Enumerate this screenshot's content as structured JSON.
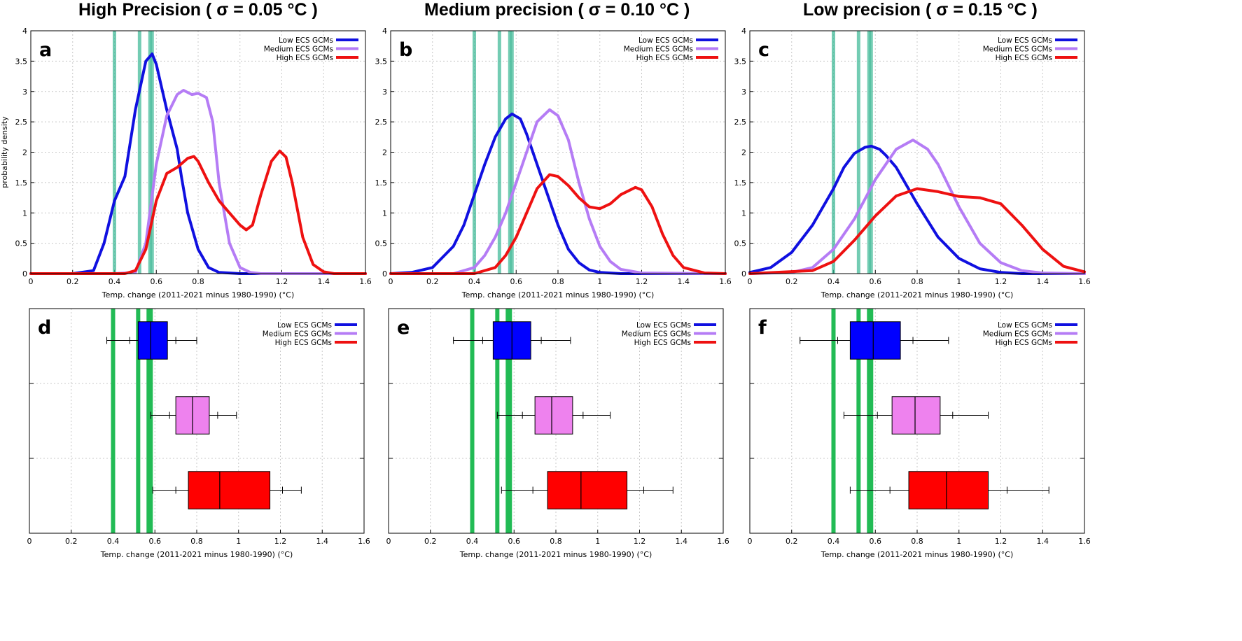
{
  "column_titles": [
    "High Precision  ( σ = 0.05 °C )",
    "Medium precision  ( σ = 0.10 °C )",
    "Low precision ( σ = 0.15 °C )"
  ],
  "colors": {
    "low": "#1010e0",
    "medium": "#b57cf5",
    "high": "#ee1111",
    "box_low": "#0000ff",
    "box_medium": "#ee82ee",
    "box_high": "#ff0000",
    "obs_density": "#44bb99",
    "obs_box": "#22bb55"
  },
  "legend": [
    "Low ECS GCMs",
    "Medium ECS GCMs",
    "High ECS GCMs"
  ],
  "chart_data": [
    {
      "type": "line",
      "panel": "a",
      "xlabel": "Temp. change (2011-2021 minus 1980-1990) (°C)",
      "ylabel": "probability density",
      "xlim": [
        0,
        1.6
      ],
      "ylim": [
        0,
        4
      ],
      "xticks": [
        "0",
        "0.2",
        "0.4",
        "0.6",
        "0.8",
        "1",
        "1.2",
        "1.4",
        "1.6"
      ],
      "yticks": [
        "0",
        "0.5",
        "1",
        "1.5",
        "2",
        "2.5",
        "3",
        "3.5",
        "4"
      ],
      "obs_lines": [
        0.4,
        0.52,
        0.57,
        0.58
      ],
      "series": [
        {
          "name": "Low ECS GCMs",
          "x": [
            0,
            0.2,
            0.3,
            0.35,
            0.4,
            0.45,
            0.5,
            0.55,
            0.58,
            0.6,
            0.65,
            0.7,
            0.72,
            0.75,
            0.8,
            0.85,
            0.9,
            1.0,
            1.6
          ],
          "y": [
            0,
            0,
            0.05,
            0.5,
            1.2,
            1.6,
            2.7,
            3.5,
            3.62,
            3.45,
            2.7,
            2.05,
            1.6,
            1.0,
            0.4,
            0.1,
            0.02,
            0,
            0
          ]
        },
        {
          "name": "Medium ECS GCMs",
          "x": [
            0,
            0.4,
            0.5,
            0.55,
            0.6,
            0.65,
            0.7,
            0.73,
            0.77,
            0.8,
            0.84,
            0.87,
            0.9,
            0.95,
            1.0,
            1.05,
            1.1,
            1.6
          ],
          "y": [
            0,
            0,
            0.02,
            0.5,
            1.8,
            2.6,
            2.95,
            3.02,
            2.95,
            2.97,
            2.9,
            2.5,
            1.5,
            0.5,
            0.1,
            0.02,
            0,
            0
          ]
        },
        {
          "name": "High ECS GCMs",
          "x": [
            0,
            0.45,
            0.5,
            0.55,
            0.6,
            0.65,
            0.7,
            0.75,
            0.78,
            0.8,
            0.85,
            0.9,
            0.95,
            1.0,
            1.03,
            1.06,
            1.1,
            1.15,
            1.19,
            1.22,
            1.25,
            1.3,
            1.35,
            1.4,
            1.45,
            1.6
          ],
          "y": [
            0,
            0,
            0.05,
            0.4,
            1.2,
            1.65,
            1.75,
            1.9,
            1.93,
            1.85,
            1.5,
            1.2,
            1.0,
            0.8,
            0.72,
            0.8,
            1.3,
            1.85,
            2.02,
            1.92,
            1.5,
            0.6,
            0.15,
            0.03,
            0,
            0
          ]
        }
      ]
    },
    {
      "type": "line",
      "panel": "b",
      "xlabel": "Temp. change (2011-2021 minus 1980-1990) (°C)",
      "ylabel": "",
      "xlim": [
        0,
        1.6
      ],
      "ylim": [
        0,
        4
      ],
      "xticks": [
        "0",
        "0.2",
        "0.4",
        "0.6",
        "0.8",
        "1",
        "1.2",
        "1.4",
        "1.6"
      ],
      "yticks": [
        "0",
        "0.5",
        "1",
        "1.5",
        "2",
        "2.5",
        "3",
        "3.5",
        "4"
      ],
      "obs_lines": [
        0.4,
        0.52,
        0.57,
        0.58
      ],
      "series": [
        {
          "name": "Low ECS GCMs",
          "x": [
            0,
            0.1,
            0.2,
            0.3,
            0.35,
            0.4,
            0.45,
            0.5,
            0.55,
            0.58,
            0.62,
            0.65,
            0.7,
            0.75,
            0.8,
            0.85,
            0.9,
            0.95,
            1.0,
            1.1,
            1.6
          ],
          "y": [
            0,
            0.02,
            0.1,
            0.45,
            0.8,
            1.3,
            1.8,
            2.25,
            2.55,
            2.63,
            2.55,
            2.3,
            1.8,
            1.3,
            0.8,
            0.4,
            0.18,
            0.06,
            0.02,
            0,
            0
          ]
        },
        {
          "name": "Medium ECS GCMs",
          "x": [
            0,
            0.3,
            0.4,
            0.45,
            0.5,
            0.55,
            0.6,
            0.65,
            0.7,
            0.76,
            0.8,
            0.85,
            0.9,
            0.95,
            1.0,
            1.05,
            1.1,
            1.2,
            1.6
          ],
          "y": [
            0,
            0,
            0.1,
            0.3,
            0.6,
            1.0,
            1.5,
            2.0,
            2.5,
            2.7,
            2.6,
            2.2,
            1.5,
            0.9,
            0.45,
            0.2,
            0.07,
            0.01,
            0
          ]
        },
        {
          "name": "High ECS GCMs",
          "x": [
            0,
            0.4,
            0.5,
            0.55,
            0.6,
            0.65,
            0.7,
            0.76,
            0.8,
            0.85,
            0.9,
            0.95,
            1.0,
            1.05,
            1.1,
            1.17,
            1.2,
            1.25,
            1.3,
            1.35,
            1.4,
            1.5,
            1.6
          ],
          "y": [
            0,
            0,
            0.1,
            0.3,
            0.6,
            1.0,
            1.4,
            1.63,
            1.6,
            1.45,
            1.25,
            1.1,
            1.07,
            1.15,
            1.3,
            1.42,
            1.38,
            1.1,
            0.65,
            0.3,
            0.1,
            0.01,
            0
          ]
        }
      ]
    },
    {
      "type": "line",
      "panel": "c",
      "xlabel": "Temp. change (2011-2021 minus 1980-1990) (°C)",
      "ylabel": "",
      "xlim": [
        0,
        1.6
      ],
      "ylim": [
        0,
        4
      ],
      "xticks": [
        "0",
        "0.2",
        "0.4",
        "0.6",
        "0.8",
        "1",
        "1.2",
        "1.4",
        "1.6"
      ],
      "yticks": [
        "0",
        "0.5",
        "1",
        "1.5",
        "2",
        "2.5",
        "3",
        "3.5",
        "4"
      ],
      "obs_lines": [
        0.4,
        0.52,
        0.57,
        0.58
      ],
      "series": [
        {
          "name": "Low ECS GCMs",
          "x": [
            0,
            0.1,
            0.2,
            0.3,
            0.4,
            0.45,
            0.5,
            0.55,
            0.58,
            0.62,
            0.65,
            0.7,
            0.8,
            0.9,
            1.0,
            1.1,
            1.2,
            1.3,
            1.6
          ],
          "y": [
            0.02,
            0.1,
            0.35,
            0.8,
            1.4,
            1.75,
            1.98,
            2.08,
            2.1,
            2.05,
            1.95,
            1.75,
            1.15,
            0.6,
            0.25,
            0.08,
            0.02,
            0,
            0
          ]
        },
        {
          "name": "Medium ECS GCMs",
          "x": [
            0,
            0.2,
            0.3,
            0.4,
            0.5,
            0.6,
            0.7,
            0.78,
            0.85,
            0.9,
            1.0,
            1.1,
            1.2,
            1.3,
            1.4,
            1.6
          ],
          "y": [
            0,
            0.02,
            0.1,
            0.4,
            0.9,
            1.55,
            2.05,
            2.2,
            2.05,
            1.8,
            1.1,
            0.5,
            0.18,
            0.05,
            0.01,
            0
          ]
        },
        {
          "name": "High ECS GCMs",
          "x": [
            0,
            0.3,
            0.4,
            0.5,
            0.6,
            0.7,
            0.8,
            0.9,
            1.0,
            1.1,
            1.2,
            1.3,
            1.4,
            1.5,
            1.6
          ],
          "y": [
            0,
            0.05,
            0.2,
            0.55,
            0.95,
            1.28,
            1.4,
            1.35,
            1.27,
            1.25,
            1.15,
            0.8,
            0.4,
            0.12,
            0.03
          ]
        }
      ]
    },
    {
      "type": "box",
      "panel": "d",
      "xlabel": "Temp. change (2011-2021 minus 1980-1990) (°C)",
      "xlim": [
        0,
        1.6
      ],
      "xticks": [
        "0",
        "0.2",
        "0.4",
        "0.6",
        "0.8",
        "1",
        "1.2",
        "1.4",
        "1.6"
      ],
      "obs_lines": [
        0.4,
        0.52,
        0.57,
        0.58
      ],
      "boxes": [
        {
          "name": "Low ECS GCMs",
          "whisker_min": 0.37,
          "p10": 0.48,
          "q1": 0.52,
          "median": 0.58,
          "q3": 0.66,
          "p90": 0.7,
          "whisker_max": 0.8
        },
        {
          "name": "Medium ECS GCMs",
          "whisker_min": 0.58,
          "p10": 0.67,
          "q1": 0.7,
          "median": 0.78,
          "q3": 0.86,
          "p90": 0.9,
          "whisker_max": 0.99
        },
        {
          "name": "High ECS GCMs",
          "whisker_min": 0.59,
          "p10": 0.7,
          "q1": 0.76,
          "median": 0.91,
          "q3": 1.15,
          "p90": 1.21,
          "whisker_max": 1.3
        }
      ]
    },
    {
      "type": "box",
      "panel": "e",
      "xlabel": "Temp. change (2011-2021 minus 1980-1990) (°C)",
      "xlim": [
        0,
        1.6
      ],
      "xticks": [
        "0",
        "0.2",
        "0.4",
        "0.6",
        "0.8",
        "1",
        "1.2",
        "1.4",
        "1.6"
      ],
      "obs_lines": [
        0.4,
        0.52,
        0.57,
        0.58
      ],
      "boxes": [
        {
          "name": "Low ECS GCMs",
          "whisker_min": 0.31,
          "p10": 0.45,
          "q1": 0.5,
          "median": 0.59,
          "q3": 0.68,
          "p90": 0.73,
          "whisker_max": 0.87
        },
        {
          "name": "Medium ECS GCMs",
          "whisker_min": 0.52,
          "p10": 0.64,
          "q1": 0.7,
          "median": 0.78,
          "q3": 0.88,
          "p90": 0.93,
          "whisker_max": 1.06
        },
        {
          "name": "High ECS GCMs",
          "whisker_min": 0.54,
          "p10": 0.69,
          "q1": 0.76,
          "median": 0.92,
          "q3": 1.14,
          "p90": 1.22,
          "whisker_max": 1.36
        }
      ]
    },
    {
      "type": "box",
      "panel": "f",
      "xlabel": "Temp. change (2011-2021 minus 1980-1990) (°C)",
      "xlim": [
        0,
        1.6
      ],
      "xticks": [
        "0",
        "0.2",
        "0.4",
        "0.6",
        "0.8",
        "1",
        "1.2",
        "1.4",
        "1.6"
      ],
      "obs_lines": [
        0.4,
        0.52,
        0.57,
        0.58
      ],
      "boxes": [
        {
          "name": "Low ECS GCMs",
          "whisker_min": 0.24,
          "p10": 0.42,
          "q1": 0.48,
          "median": 0.59,
          "q3": 0.72,
          "p90": 0.78,
          "whisker_max": 0.95
        },
        {
          "name": "Medium ECS GCMs",
          "whisker_min": 0.45,
          "p10": 0.61,
          "q1": 0.68,
          "median": 0.79,
          "q3": 0.91,
          "p90": 0.97,
          "whisker_max": 1.14
        },
        {
          "name": "High ECS GCMs",
          "whisker_min": 0.48,
          "p10": 0.67,
          "q1": 0.76,
          "median": 0.94,
          "q3": 1.14,
          "p90": 1.23,
          "whisker_max": 1.43
        }
      ]
    }
  ]
}
